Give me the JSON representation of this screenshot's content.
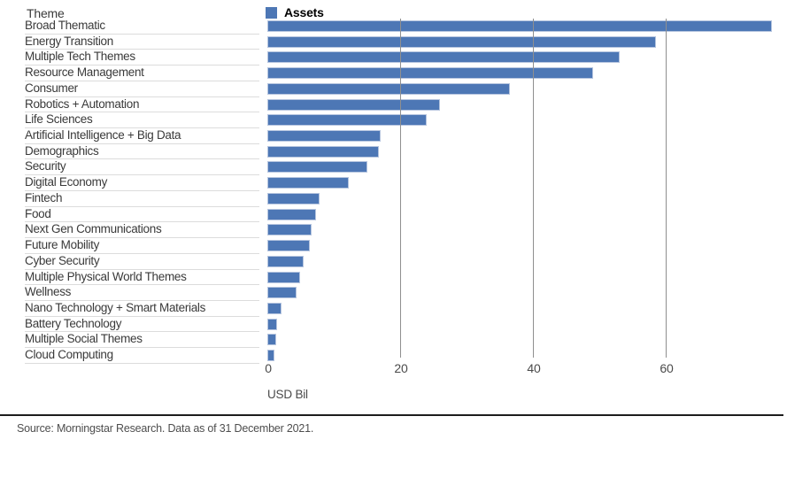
{
  "header": {
    "column_label": "Theme"
  },
  "legend": {
    "label": "Assets",
    "color": "#4d77b5"
  },
  "axis": {
    "xlabel": "USD Bil",
    "xticks": [
      0,
      20,
      40,
      60
    ]
  },
  "footer": {
    "source": "Source: Morningstar Research. Data as of 31 December 2021."
  },
  "colors": {
    "bar": "#4d77b5",
    "bar_edge": "#b6c5df",
    "gridline": "#8f8f8f",
    "row_separator": "#dcdcdc",
    "label_text": "#3a3a3a",
    "axis_text": "#4a4a4a"
  },
  "chart_data": {
    "type": "bar",
    "orientation": "horizontal",
    "title": "",
    "series_name": "Assets",
    "xlabel": "USD Bil",
    "xlim": [
      0,
      77
    ],
    "xticks": [
      0,
      20,
      40,
      60
    ],
    "grid": "vertical",
    "legend_position": "top",
    "bar_color": "#4d77b5",
    "categories": [
      "Broad Thematic",
      "Energy Transition",
      "Multiple Tech Themes",
      "Resource Management",
      "Consumer",
      "Robotics + Automation",
      "Life Sciences",
      "Artificial Intelligence + Big Data",
      "Demographics",
      "Security",
      "Digital Economy",
      "Fintech",
      "Food",
      "Next Gen Communications",
      "Future Mobility",
      "Cyber Security",
      "Multiple Physical World Themes",
      "Wellness",
      "Nano Technology + Smart Materials",
      "Battery Technology",
      "Multiple Social Themes",
      "Cloud Computing"
    ],
    "values": [
      76.0,
      58.5,
      53.0,
      49.0,
      36.5,
      26.0,
      24.0,
      17.0,
      16.8,
      15.0,
      12.2,
      7.8,
      7.3,
      6.7,
      6.4,
      5.4,
      4.9,
      4.4,
      2.1,
      1.5,
      1.3,
      1.0
    ]
  }
}
